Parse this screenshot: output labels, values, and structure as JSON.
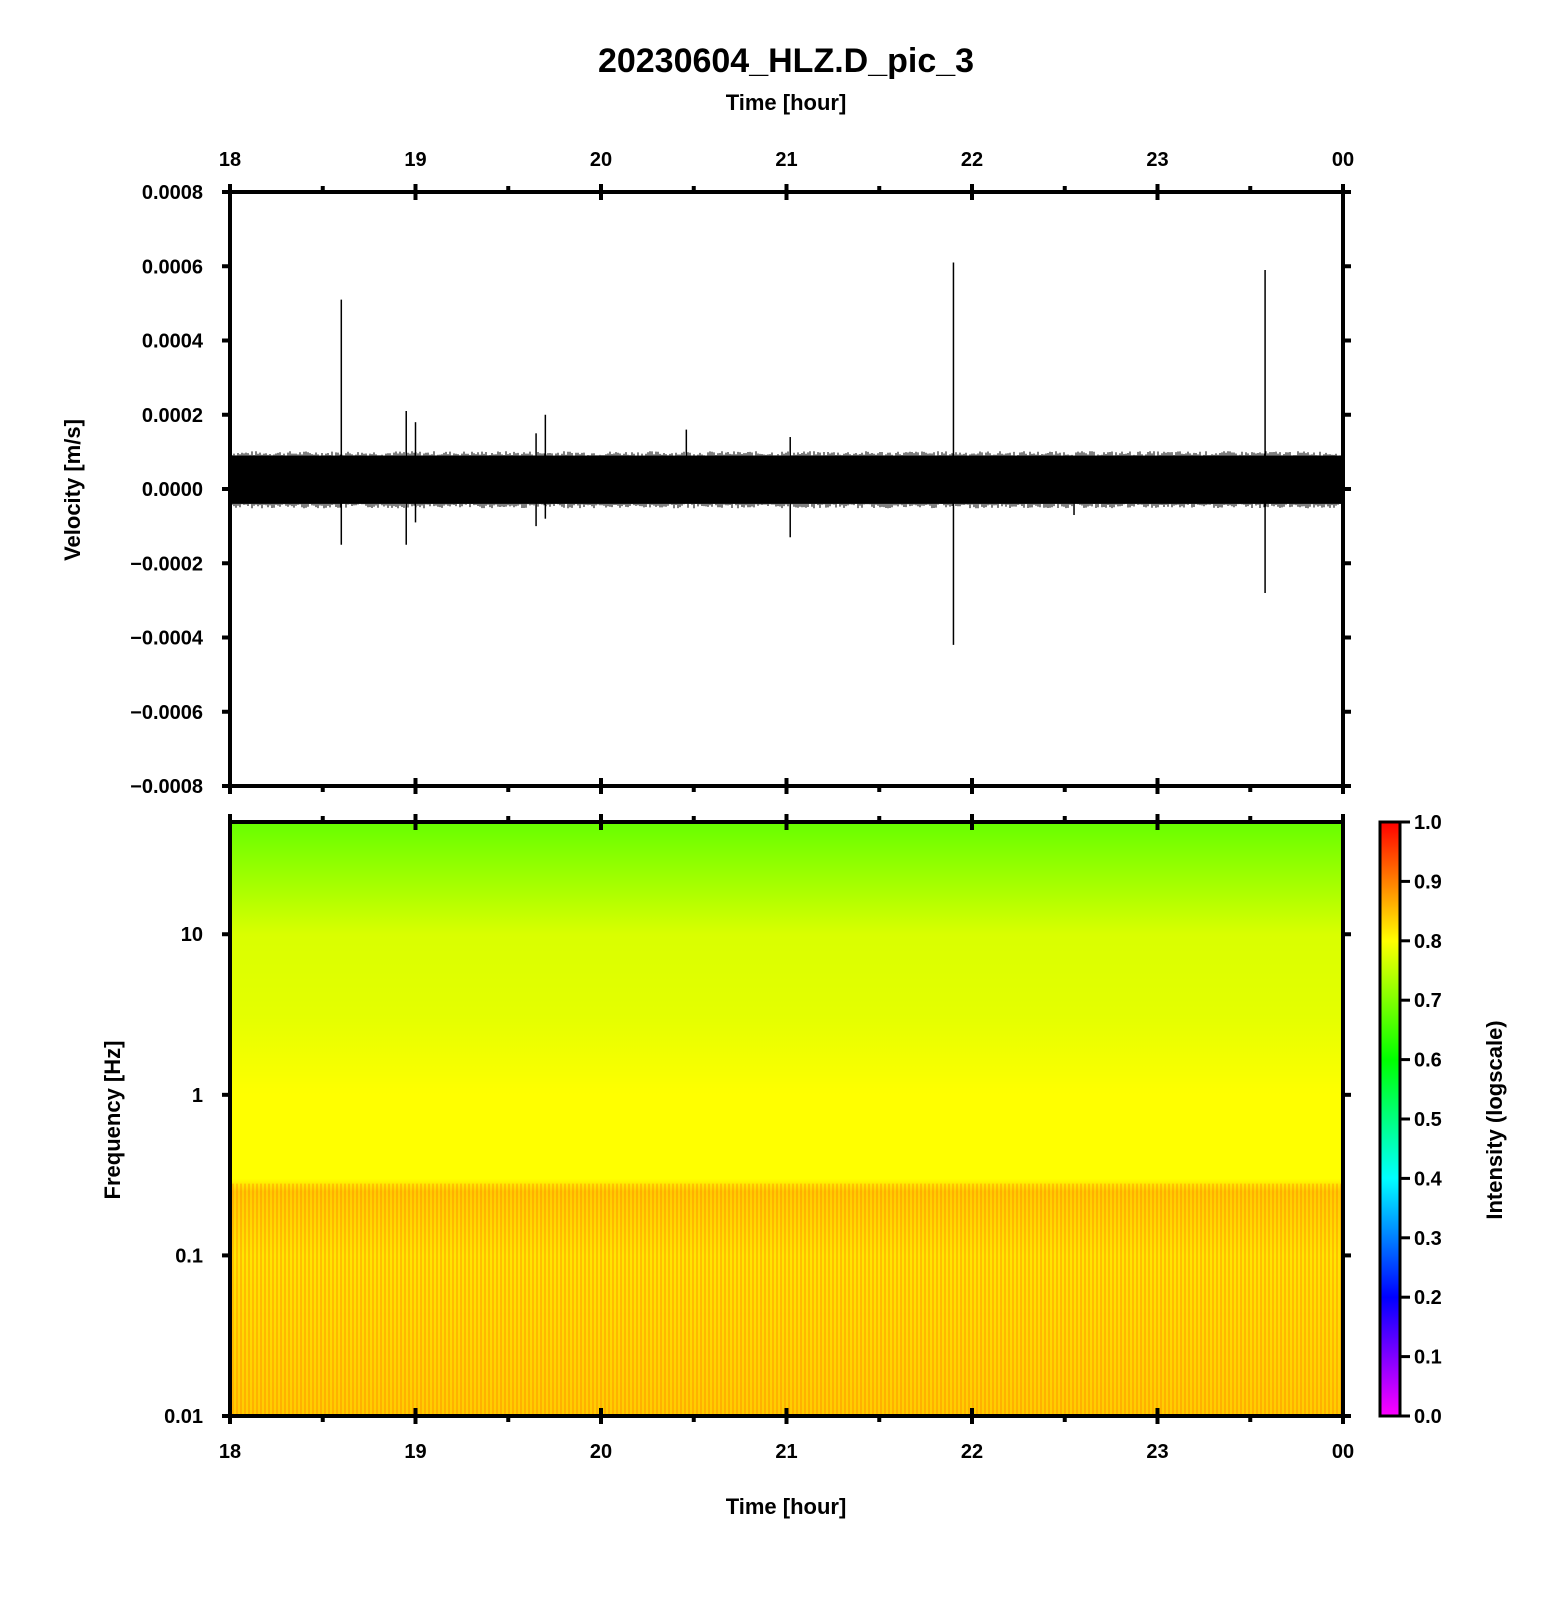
{
  "figure": {
    "title": "20230604_HLZ.D_pic_3",
    "top_xlabel": "Time [hour]",
    "bottom_xlabel": "Time [hour]"
  },
  "chart_data": [
    {
      "type": "line",
      "name": "waveform",
      "ylabel": "Velocity [m/s]",
      "xlabel": "Time [hour]",
      "xlim": [
        18,
        24
      ],
      "ylim": [
        -0.0008,
        0.0008
      ],
      "x_ticks": [
        "18",
        "19",
        "20",
        "21",
        "22",
        "23",
        "00"
      ],
      "y_ticks": [
        "0.0008",
        "0.0006",
        "0.0004",
        "0.0002",
        "0.0000",
        "−0.0002",
        "−0.0004",
        "−0.0006",
        "−0.0008"
      ],
      "y_tick_values": [
        0.0008,
        0.0006,
        0.0004,
        0.0002,
        0.0,
        -0.0002,
        -0.0004,
        -0.0006,
        -0.0008
      ],
      "noise_band": [
        -4e-05,
        9e-05
      ],
      "spikes": [
        {
          "t": 18.6,
          "max": 0.00051,
          "min": -0.00015
        },
        {
          "t": 18.95,
          "max": 0.00021,
          "min": -0.00015
        },
        {
          "t": 19.0,
          "max": 0.00018,
          "min": -9e-05
        },
        {
          "t": 19.65,
          "max": 0.00015,
          "min": -0.0001
        },
        {
          "t": 19.7,
          "max": 0.0002,
          "min": -8e-05
        },
        {
          "t": 20.46,
          "max": 0.00016,
          "min": -3e-05
        },
        {
          "t": 21.02,
          "max": 0.00014,
          "min": -0.00013
        },
        {
          "t": 21.9,
          "max": 0.00061,
          "min": -0.00042
        },
        {
          "t": 22.55,
          "max": 8e-05,
          "min": -7e-05
        },
        {
          "t": 23.58,
          "max": 0.00059,
          "min": -0.00028
        }
      ],
      "color": "#000000",
      "grid": false
    },
    {
      "type": "heatmap",
      "name": "spectrogram",
      "ylabel": "Frequency [Hz]",
      "xlabel": "Time [hour]",
      "xlim": [
        18,
        24
      ],
      "ylim": [
        0.01,
        50
      ],
      "yscale": "log",
      "x_ticks": [
        "18",
        "19",
        "20",
        "21",
        "22",
        "23",
        "00"
      ],
      "y_ticks": [
        "10",
        "1",
        "0.1",
        "0.01"
      ],
      "y_tick_values": [
        10,
        1,
        0.1,
        0.01
      ],
      "intensity_profile": [
        {
          "freq": 50,
          "intensity": 0.68
        },
        {
          "freq": 20,
          "intensity": 0.73
        },
        {
          "freq": 10,
          "intensity": 0.77
        },
        {
          "freq": 3,
          "intensity": 0.78
        },
        {
          "freq": 1,
          "intensity": 0.8
        },
        {
          "freq": 0.3,
          "intensity": 0.8
        },
        {
          "freq": 0.25,
          "intensity": 0.84
        },
        {
          "freq": 0.1,
          "intensity": 0.82
        },
        {
          "freq": 0.01,
          "intensity": 0.84
        }
      ],
      "colorbar": {
        "label": "Intensity (logscale)",
        "range": [
          0.0,
          1.0
        ],
        "ticks": [
          "1.0",
          "0.9",
          "0.8",
          "0.7",
          "0.6",
          "0.5",
          "0.4",
          "0.3",
          "0.2",
          "0.1",
          "0.0"
        ],
        "tick_values": [
          1.0,
          0.9,
          0.8,
          0.7,
          0.6,
          0.5,
          0.4,
          0.3,
          0.2,
          0.1,
          0.0
        ],
        "colors": [
          "#ff00ff",
          "#0000ff",
          "#00ffff",
          "#00ff00",
          "#ffff00",
          "#ff0000"
        ]
      }
    }
  ]
}
